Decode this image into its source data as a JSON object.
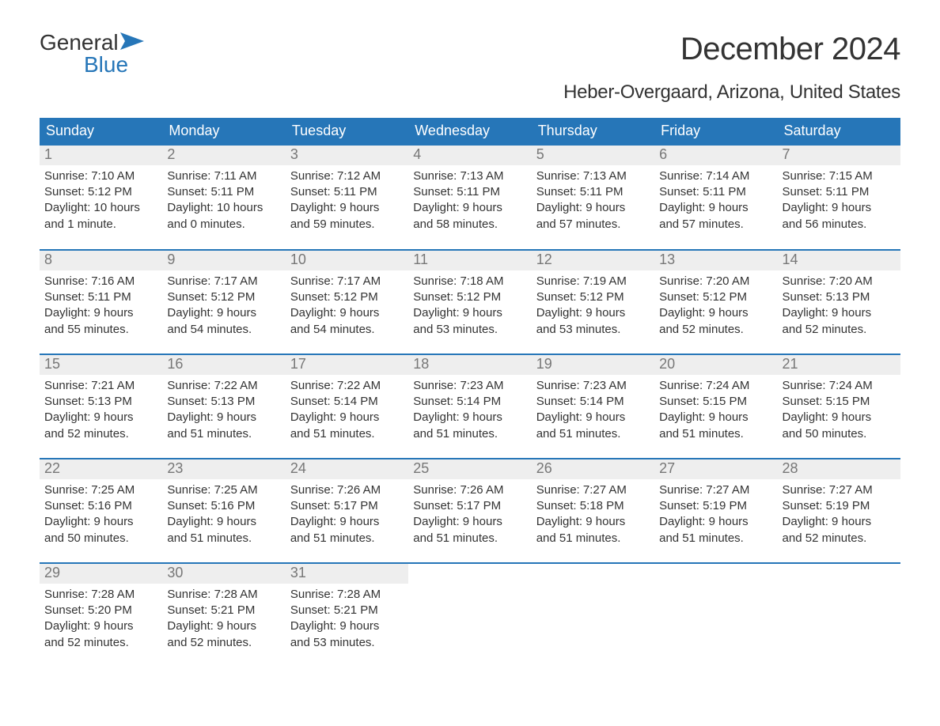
{
  "logo": {
    "line1": "General",
    "line2": "Blue"
  },
  "title": "December 2024",
  "location": "Heber-Overgaard, Arizona, United States",
  "colors": {
    "header_bg": "#2676b8",
    "header_text": "#ffffff",
    "daynum_bg": "#eeeeee",
    "daynum_text": "#777777",
    "body_text": "#333333",
    "page_bg": "#ffffff",
    "logo_blue": "#2676b8"
  },
  "typography": {
    "title_fontsize": 40,
    "location_fontsize": 24,
    "header_fontsize": 18,
    "daynum_fontsize": 18,
    "body_fontsize": 15,
    "font_family": "Arial"
  },
  "day_headers": [
    "Sunday",
    "Monday",
    "Tuesday",
    "Wednesday",
    "Thursday",
    "Friday",
    "Saturday"
  ],
  "weeks": [
    [
      {
        "n": "1",
        "sr": "Sunrise: 7:10 AM",
        "ss": "Sunset: 5:12 PM",
        "d1": "Daylight: 10 hours",
        "d2": "and 1 minute."
      },
      {
        "n": "2",
        "sr": "Sunrise: 7:11 AM",
        "ss": "Sunset: 5:11 PM",
        "d1": "Daylight: 10 hours",
        "d2": "and 0 minutes."
      },
      {
        "n": "3",
        "sr": "Sunrise: 7:12 AM",
        "ss": "Sunset: 5:11 PM",
        "d1": "Daylight: 9 hours",
        "d2": "and 59 minutes."
      },
      {
        "n": "4",
        "sr": "Sunrise: 7:13 AM",
        "ss": "Sunset: 5:11 PM",
        "d1": "Daylight: 9 hours",
        "d2": "and 58 minutes."
      },
      {
        "n": "5",
        "sr": "Sunrise: 7:13 AM",
        "ss": "Sunset: 5:11 PM",
        "d1": "Daylight: 9 hours",
        "d2": "and 57 minutes."
      },
      {
        "n": "6",
        "sr": "Sunrise: 7:14 AM",
        "ss": "Sunset: 5:11 PM",
        "d1": "Daylight: 9 hours",
        "d2": "and 57 minutes."
      },
      {
        "n": "7",
        "sr": "Sunrise: 7:15 AM",
        "ss": "Sunset: 5:11 PM",
        "d1": "Daylight: 9 hours",
        "d2": "and 56 minutes."
      }
    ],
    [
      {
        "n": "8",
        "sr": "Sunrise: 7:16 AM",
        "ss": "Sunset: 5:11 PM",
        "d1": "Daylight: 9 hours",
        "d2": "and 55 minutes."
      },
      {
        "n": "9",
        "sr": "Sunrise: 7:17 AM",
        "ss": "Sunset: 5:12 PM",
        "d1": "Daylight: 9 hours",
        "d2": "and 54 minutes."
      },
      {
        "n": "10",
        "sr": "Sunrise: 7:17 AM",
        "ss": "Sunset: 5:12 PM",
        "d1": "Daylight: 9 hours",
        "d2": "and 54 minutes."
      },
      {
        "n": "11",
        "sr": "Sunrise: 7:18 AM",
        "ss": "Sunset: 5:12 PM",
        "d1": "Daylight: 9 hours",
        "d2": "and 53 minutes."
      },
      {
        "n": "12",
        "sr": "Sunrise: 7:19 AM",
        "ss": "Sunset: 5:12 PM",
        "d1": "Daylight: 9 hours",
        "d2": "and 53 minutes."
      },
      {
        "n": "13",
        "sr": "Sunrise: 7:20 AM",
        "ss": "Sunset: 5:12 PM",
        "d1": "Daylight: 9 hours",
        "d2": "and 52 minutes."
      },
      {
        "n": "14",
        "sr": "Sunrise: 7:20 AM",
        "ss": "Sunset: 5:13 PM",
        "d1": "Daylight: 9 hours",
        "d2": "and 52 minutes."
      }
    ],
    [
      {
        "n": "15",
        "sr": "Sunrise: 7:21 AM",
        "ss": "Sunset: 5:13 PM",
        "d1": "Daylight: 9 hours",
        "d2": "and 52 minutes."
      },
      {
        "n": "16",
        "sr": "Sunrise: 7:22 AM",
        "ss": "Sunset: 5:13 PM",
        "d1": "Daylight: 9 hours",
        "d2": "and 51 minutes."
      },
      {
        "n": "17",
        "sr": "Sunrise: 7:22 AM",
        "ss": "Sunset: 5:14 PM",
        "d1": "Daylight: 9 hours",
        "d2": "and 51 minutes."
      },
      {
        "n": "18",
        "sr": "Sunrise: 7:23 AM",
        "ss": "Sunset: 5:14 PM",
        "d1": "Daylight: 9 hours",
        "d2": "and 51 minutes."
      },
      {
        "n": "19",
        "sr": "Sunrise: 7:23 AM",
        "ss": "Sunset: 5:14 PM",
        "d1": "Daylight: 9 hours",
        "d2": "and 51 minutes."
      },
      {
        "n": "20",
        "sr": "Sunrise: 7:24 AM",
        "ss": "Sunset: 5:15 PM",
        "d1": "Daylight: 9 hours",
        "d2": "and 51 minutes."
      },
      {
        "n": "21",
        "sr": "Sunrise: 7:24 AM",
        "ss": "Sunset: 5:15 PM",
        "d1": "Daylight: 9 hours",
        "d2": "and 50 minutes."
      }
    ],
    [
      {
        "n": "22",
        "sr": "Sunrise: 7:25 AM",
        "ss": "Sunset: 5:16 PM",
        "d1": "Daylight: 9 hours",
        "d2": "and 50 minutes."
      },
      {
        "n": "23",
        "sr": "Sunrise: 7:25 AM",
        "ss": "Sunset: 5:16 PM",
        "d1": "Daylight: 9 hours",
        "d2": "and 51 minutes."
      },
      {
        "n": "24",
        "sr": "Sunrise: 7:26 AM",
        "ss": "Sunset: 5:17 PM",
        "d1": "Daylight: 9 hours",
        "d2": "and 51 minutes."
      },
      {
        "n": "25",
        "sr": "Sunrise: 7:26 AM",
        "ss": "Sunset: 5:17 PM",
        "d1": "Daylight: 9 hours",
        "d2": "and 51 minutes."
      },
      {
        "n": "26",
        "sr": "Sunrise: 7:27 AM",
        "ss": "Sunset: 5:18 PM",
        "d1": "Daylight: 9 hours",
        "d2": "and 51 minutes."
      },
      {
        "n": "27",
        "sr": "Sunrise: 7:27 AM",
        "ss": "Sunset: 5:19 PM",
        "d1": "Daylight: 9 hours",
        "d2": "and 51 minutes."
      },
      {
        "n": "28",
        "sr": "Sunrise: 7:27 AM",
        "ss": "Sunset: 5:19 PM",
        "d1": "Daylight: 9 hours",
        "d2": "and 52 minutes."
      }
    ],
    [
      {
        "n": "29",
        "sr": "Sunrise: 7:28 AM",
        "ss": "Sunset: 5:20 PM",
        "d1": "Daylight: 9 hours",
        "d2": "and 52 minutes."
      },
      {
        "n": "30",
        "sr": "Sunrise: 7:28 AM",
        "ss": "Sunset: 5:21 PM",
        "d1": "Daylight: 9 hours",
        "d2": "and 52 minutes."
      },
      {
        "n": "31",
        "sr": "Sunrise: 7:28 AM",
        "ss": "Sunset: 5:21 PM",
        "d1": "Daylight: 9 hours",
        "d2": "and 53 minutes."
      },
      {
        "empty": true
      },
      {
        "empty": true
      },
      {
        "empty": true
      },
      {
        "empty": true
      }
    ]
  ]
}
